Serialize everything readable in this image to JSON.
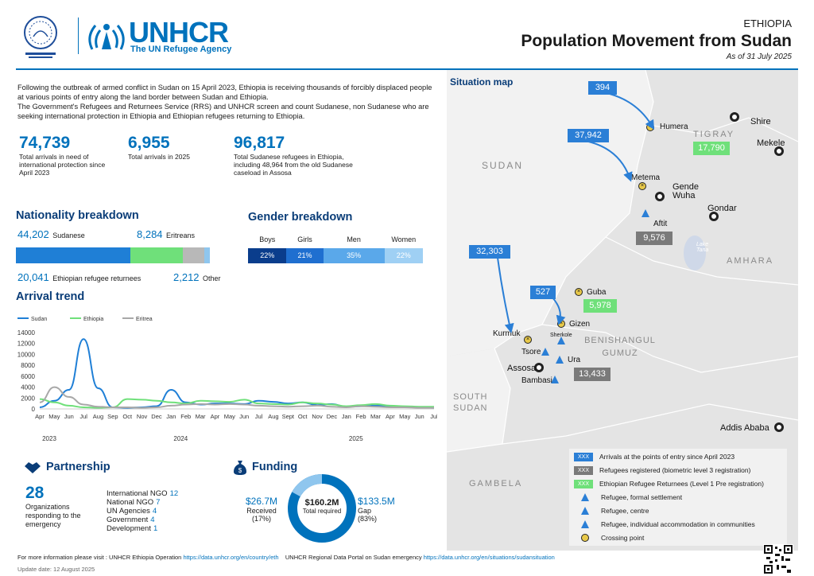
{
  "header": {
    "org_name": "UNHCR",
    "org_tagline": "The UN Refugee Agency",
    "country": "ETHIOPIA",
    "title": "Population Movement from Sudan",
    "as_of": "As of 31 July 2025"
  },
  "intro": {
    "p1": "Following the outbreak of armed conflict in Sudan on 15 April 2023, Ethiopia is receiving thousands of forcibly displaced people at various points of entry along the land border between Sudan and Ethiopia.",
    "p2": "The Government's Refugees and Returnees Service (RRS) and UNHCR screen and count Sudanese, non Sudanese who are seeking international protection in Ethiopia and Ethiopian refugees returning to Ethiopia."
  },
  "kpis": [
    {
      "value": "74,739",
      "label": "Total arrivals in need of international protection since April 2023"
    },
    {
      "value": "6,955",
      "label": "Total arrivals in 2025"
    },
    {
      "value": "96,817",
      "label": "Total Sudanese refugees in Ethiopia, including 48,964 from the old Sudanese caseload in Assosa"
    }
  ],
  "nationality": {
    "heading": "Nationality breakdown",
    "sudanese_value": "44,202",
    "sudanese_label": "Sudanese",
    "eritrean_value": "8,284",
    "eritrean_label": "Eritreans",
    "returnee_value": "20,041",
    "returnee_label": "Ethiopian refugee returnees",
    "other_value": "2,212",
    "other_label": "Other",
    "shares": [
      44202,
      20041,
      8284,
      2212
    ],
    "colors": [
      "#1f7fd6",
      "#6fe07a",
      "#b8b8b8",
      "#8fc6ee"
    ]
  },
  "gender": {
    "heading": "Gender breakdown",
    "cols": [
      {
        "label": "Boys",
        "pct": "22%",
        "value": 22,
        "color": "#0a3d8c"
      },
      {
        "label": "Girls",
        "pct": "21%",
        "value": 21,
        "color": "#1f6fd0"
      },
      {
        "label": "Men",
        "pct": "35%",
        "value": 35,
        "color": "#5aa8ea"
      },
      {
        "label": "Women",
        "pct": "22%",
        "value": 22,
        "color": "#9fd0f4"
      }
    ]
  },
  "arrival": {
    "heading": "Arrival trend"
  },
  "chart_data": {
    "type": "line",
    "title": "Arrival trend",
    "x": [
      "Apr",
      "May",
      "Jun",
      "Jul",
      "Aug",
      "Sep",
      "Oct",
      "Nov",
      "Dec",
      "Jan",
      "Feb",
      "Mar",
      "Apr",
      "May",
      "Jun",
      "Jul",
      "Aug",
      "Sept",
      "Oct",
      "Nov",
      "Dec",
      "Jan",
      "Feb",
      "Mar",
      "Apr",
      "May",
      "Jun",
      "Jul"
    ],
    "year_labels": [
      "2023",
      "2024",
      "2025"
    ],
    "ylim": [
      0,
      14000
    ],
    "yticks": [
      0,
      2000,
      4000,
      6000,
      8000,
      10000,
      12000,
      14000
    ],
    "legend_position": "top-left",
    "series": [
      {
        "name": "Sudan",
        "color": "#1f7fd6",
        "values": [
          300,
          1500,
          3500,
          12800,
          3800,
          300,
          200,
          300,
          500,
          3500,
          1200,
          800,
          1000,
          1000,
          900,
          1500,
          1300,
          1000,
          1200,
          700,
          900,
          400,
          500,
          600,
          500,
          400,
          300,
          200
        ]
      },
      {
        "name": "Ethiopia",
        "color": "#6fe07a",
        "values": [
          1800,
          1200,
          600,
          300,
          200,
          300,
          1800,
          1700,
          1500,
          1200,
          1000,
          1500,
          1400,
          1300,
          1700,
          1000,
          900,
          800,
          1200,
          1000,
          800,
          500,
          700,
          900,
          600,
          500,
          400,
          400
        ]
      },
      {
        "name": "Eritrea",
        "color": "#a8a8a8",
        "values": [
          1200,
          4000,
          2200,
          800,
          400,
          300,
          300,
          200,
          300,
          600,
          800,
          900,
          800,
          900,
          800,
          600,
          500,
          400,
          500,
          600,
          400,
          300,
          500,
          400,
          300,
          300,
          200,
          200
        ]
      }
    ]
  },
  "partnership": {
    "heading": "Partnership",
    "count": "28",
    "count_label": "Organizations responding to the emergency",
    "rows": [
      {
        "label": "International NGO",
        "value": "12"
      },
      {
        "label": "National NGO",
        "value": "7"
      },
      {
        "label": "UN Agencies",
        "value": "4"
      },
      {
        "label": "Government",
        "value": "4"
      },
      {
        "label": "Development",
        "value": "1"
      }
    ]
  },
  "funding": {
    "heading": "Funding",
    "received_value": "$26.7M",
    "received_label": "Received",
    "received_pct": "(17%)",
    "received_share": 17,
    "total_value": "$160.2M",
    "total_label": "Total required",
    "gap_value": "$133.5M",
    "gap_label": "Gap",
    "gap_pct": "(83%)",
    "colors": {
      "received": "#8fc6ee",
      "gap": "#0072bc"
    }
  },
  "map": {
    "heading": "Situation map",
    "regions": [
      "SUDAN",
      "TIGRAY",
      "AMHARA",
      "BENISHANGUL GUMUZ",
      "SOUTH SUDAN",
      "GAMBELA"
    ],
    "lake_label": "Lake Tana",
    "places": [
      "Humera",
      "Shire",
      "Mekele",
      "Metema",
      "Gende Wuha",
      "Gondar",
      "Aftit",
      "Guba",
      "Gizen",
      "Kurmuk",
      "Sherkole",
      "Tsore",
      "Ura",
      "Assosa",
      "Bambasi",
      "Addis Ababa"
    ],
    "arrival_boxes": [
      "394",
      "37,942",
      "32,303",
      "527"
    ],
    "biometric_boxes": [
      "9,576",
      "13,433"
    ],
    "returnee_boxes": [
      "17,790",
      "5,978"
    ],
    "legend": {
      "marker": "XXX",
      "items": [
        "Arrivals at the points of entry since April 2023",
        "Refugees registered (biometric level 3 registration)",
        "Ethiopian Refugee Returnees (Level 1 Pre registration)",
        "Refugee, formal settlement",
        "Refugee, centre",
        "Refugee, individual accommodation in communities",
        "Crossing point"
      ]
    }
  },
  "footer": {
    "more_info": "For more information please visit : UNHCR Ethiopia Operation",
    "link1": "https://data.unhcr.org/en/country/eth",
    "portal": "UNHCR Regional Data Portal on Sudan emergency",
    "link2": "https://data.unhcr.org/en/situations/sudansituation",
    "update": "Update date: 12 August 2025"
  }
}
